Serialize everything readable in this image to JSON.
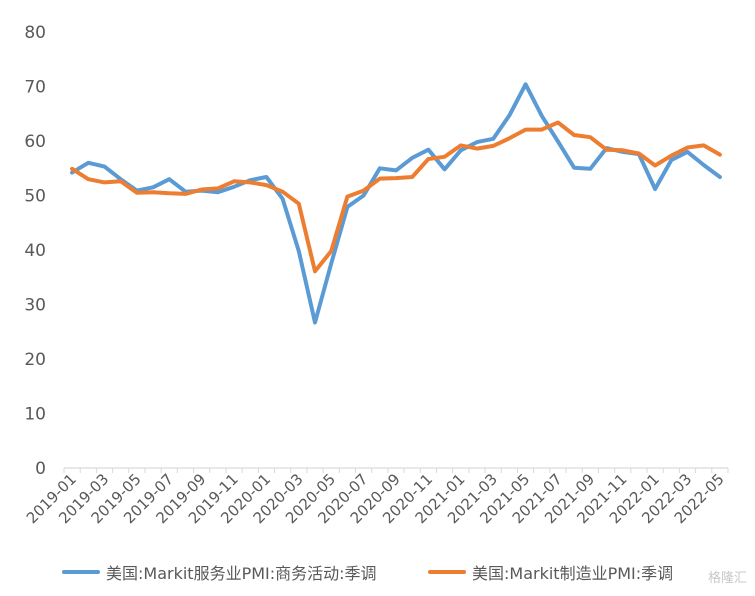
{
  "chart_data": {
    "type": "line",
    "title": "",
    "xlabel": "",
    "ylabel": "",
    "ylim": [
      0,
      80
    ],
    "yticks": [
      0,
      10,
      20,
      30,
      40,
      50,
      60,
      70,
      80
    ],
    "grid": false,
    "legend_position": "bottom",
    "x": [
      "2019-01",
      "2019-02",
      "2019-03",
      "2019-04",
      "2019-05",
      "2019-06",
      "2019-07",
      "2019-08",
      "2019-09",
      "2019-10",
      "2019-11",
      "2019-12",
      "2020-01",
      "2020-02",
      "2020-03",
      "2020-04",
      "2020-05",
      "2020-06",
      "2020-07",
      "2020-08",
      "2020-09",
      "2020-10",
      "2020-11",
      "2020-12",
      "2021-01",
      "2021-02",
      "2021-03",
      "2021-04",
      "2021-05",
      "2021-06",
      "2021-07",
      "2021-08",
      "2021-09",
      "2021-10",
      "2021-11",
      "2021-12",
      "2022-01",
      "2022-02",
      "2022-03",
      "2022-04",
      "2022-05"
    ],
    "x_tick_labels": [
      "2019-01",
      "2019-03",
      "2019-05",
      "2019-07",
      "2019-09",
      "2019-11",
      "2020-01",
      "2020-03",
      "2020-05",
      "2020-07",
      "2020-09",
      "2020-11",
      "2021-01",
      "2021-03",
      "2021-05",
      "2021-07",
      "2021-09",
      "2021-11",
      "2022-01",
      "2022-03",
      "2022-05"
    ],
    "series": [
      {
        "name": "美国:Markit服务业PMI:商务活动:季调",
        "color": "#5B9BD5",
        "values": [
          54.2,
          56.0,
          55.3,
          53.0,
          50.9,
          51.5,
          53.0,
          50.7,
          50.9,
          50.6,
          51.6,
          52.8,
          53.4,
          49.4,
          39.8,
          26.7,
          37.5,
          47.9,
          50.0,
          55.0,
          54.6,
          56.9,
          58.4,
          54.8,
          58.3,
          59.8,
          60.4,
          64.7,
          70.4,
          64.6,
          59.9,
          55.1,
          54.9,
          58.7,
          58.0,
          57.6,
          51.2,
          56.5,
          58.0,
          55.6,
          53.4
        ]
      },
      {
        "name": "美国:Markit制造业PMI:季调",
        "color": "#ED7D31",
        "values": [
          54.9,
          53.0,
          52.4,
          52.6,
          50.5,
          50.6,
          50.4,
          50.3,
          51.1,
          51.3,
          52.6,
          52.4,
          51.9,
          50.7,
          48.5,
          36.1,
          39.8,
          49.8,
          50.9,
          53.1,
          53.2,
          53.4,
          56.7,
          57.1,
          59.2,
          58.6,
          59.1,
          60.5,
          62.1,
          62.1,
          63.4,
          61.1,
          60.7,
          58.4,
          58.3,
          57.7,
          55.5,
          57.3,
          58.8,
          59.2,
          57.5
        ]
      }
    ]
  },
  "watermark": "格隆汇"
}
